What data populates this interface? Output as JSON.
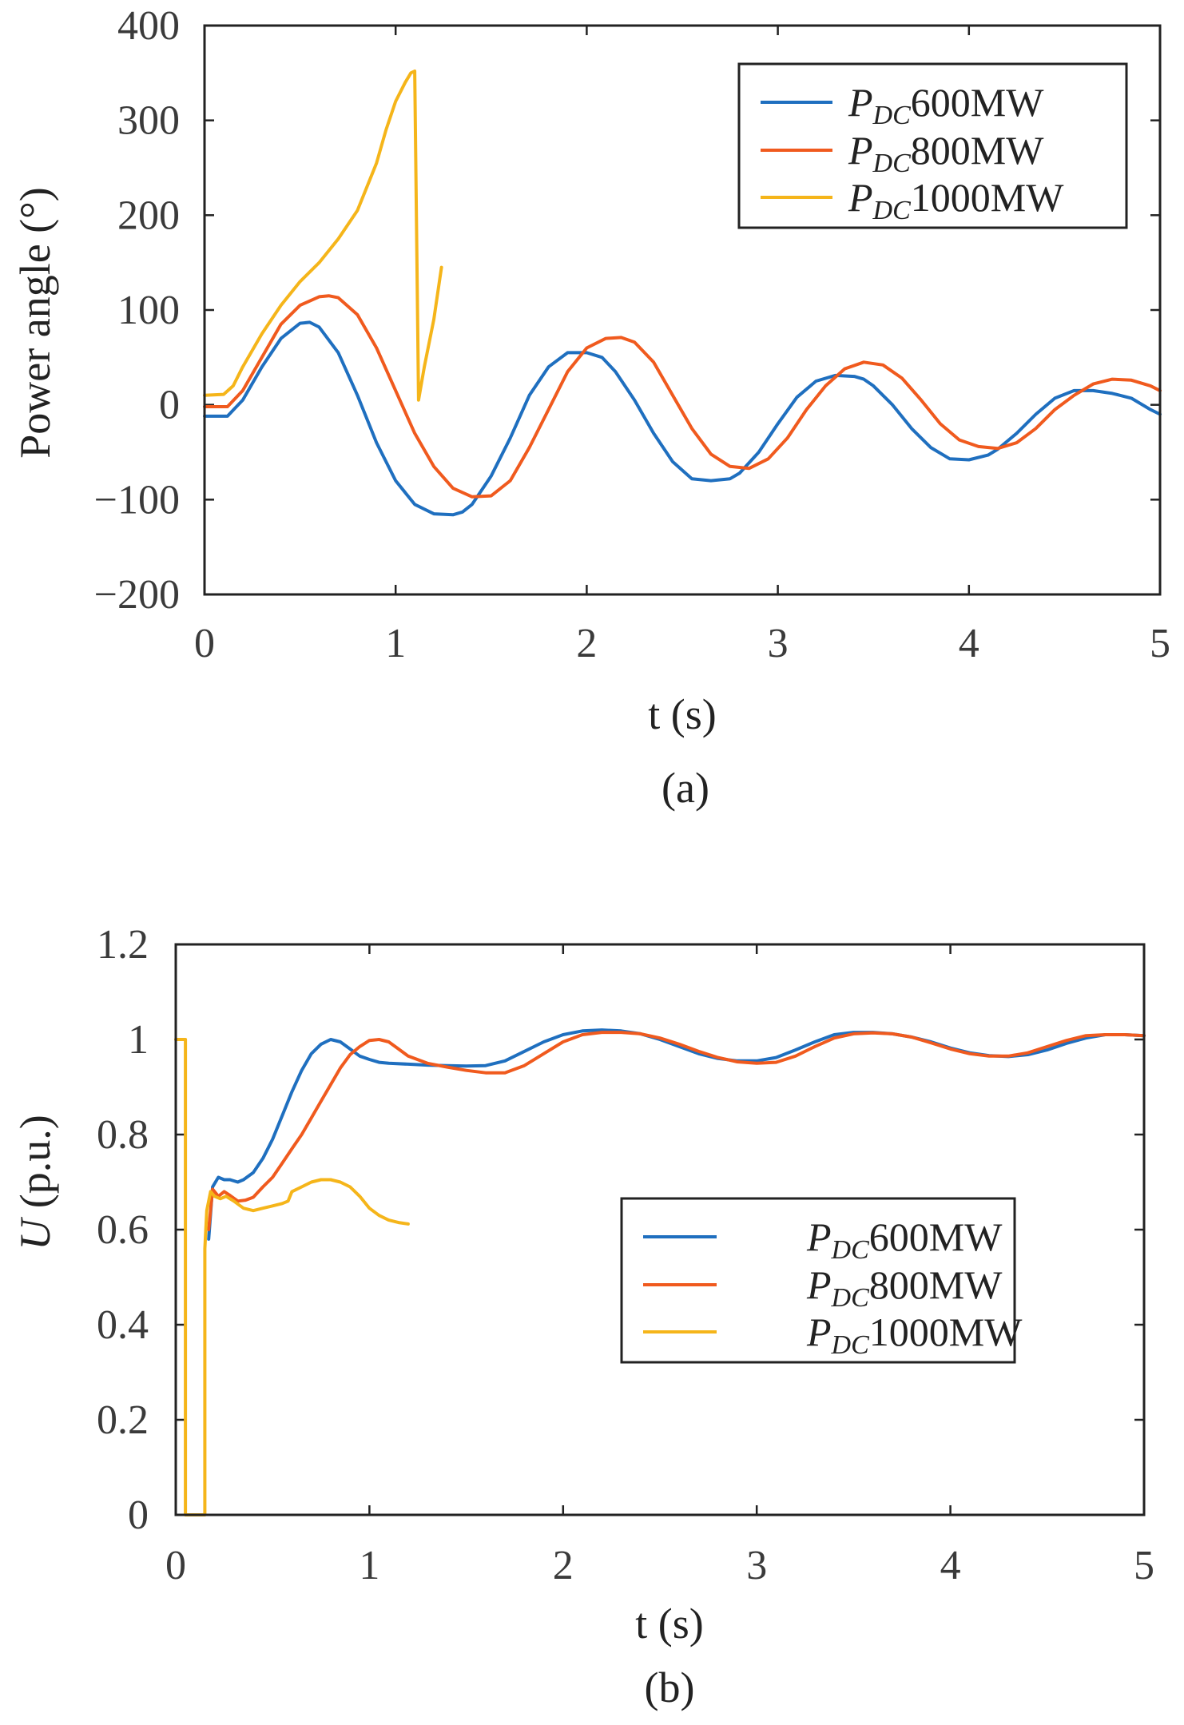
{
  "colors": {
    "p600": "#1f6fbf",
    "p800": "#f05a1e",
    "p1000": "#f5b51a",
    "axis": "#222222"
  },
  "chart_data": [
    {
      "id": "a",
      "type": "line",
      "caption": "(a)",
      "title": "",
      "xlabel": "t (s)",
      "ylabel": "Power angle (°)",
      "xlim": [
        0,
        5
      ],
      "ylim": [
        -200,
        400
      ],
      "xticks": [
        "0",
        "1",
        "2",
        "3",
        "4",
        "5"
      ],
      "yticks": [
        "−200",
        "−100",
        "0",
        "100",
        "200",
        "300",
        "400"
      ],
      "legend_position": "top-right",
      "series": [
        {
          "name": "PDC600MW",
          "sym": "P",
          "sub": "DC",
          "tail": "600MW",
          "color": "#1f6fbf",
          "x": [
            0,
            0.12,
            0.2,
            0.3,
            0.4,
            0.5,
            0.55,
            0.6,
            0.7,
            0.8,
            0.9,
            1.0,
            1.1,
            1.2,
            1.3,
            1.35,
            1.4,
            1.5,
            1.6,
            1.7,
            1.8,
            1.9,
            2.0,
            2.08,
            2.15,
            2.25,
            2.35,
            2.45,
            2.55,
            2.65,
            2.75,
            2.8,
            2.9,
            3.0,
            3.1,
            3.2,
            3.3,
            3.4,
            3.45,
            3.5,
            3.6,
            3.7,
            3.8,
            3.9,
            4.0,
            4.1,
            4.15,
            4.25,
            4.35,
            4.45,
            4.55,
            4.65,
            4.75,
            4.85,
            4.95,
            5.0
          ],
          "y": [
            -12,
            -12,
            5,
            40,
            70,
            86,
            87,
            82,
            55,
            10,
            -40,
            -80,
            -105,
            -115,
            -116,
            -113,
            -105,
            -75,
            -35,
            10,
            40,
            55,
            55,
            50,
            35,
            5,
            -30,
            -60,
            -78,
            -80,
            -78,
            -72,
            -50,
            -20,
            8,
            25,
            31,
            30,
            27,
            20,
            0,
            -25,
            -45,
            -57,
            -58,
            -53,
            -47,
            -30,
            -10,
            7,
            15,
            15,
            12,
            7,
            -5,
            -10
          ]
        },
        {
          "name": "PDC800MW",
          "sym": "P",
          "sub": "DC",
          "tail": "800MW",
          "color": "#f05a1e",
          "x": [
            0,
            0.12,
            0.2,
            0.3,
            0.4,
            0.5,
            0.6,
            0.65,
            0.7,
            0.8,
            0.9,
            1.0,
            1.1,
            1.2,
            1.3,
            1.4,
            1.5,
            1.6,
            1.7,
            1.8,
            1.9,
            2.0,
            2.1,
            2.18,
            2.25,
            2.35,
            2.45,
            2.55,
            2.65,
            2.75,
            2.85,
            2.95,
            3.05,
            3.15,
            3.25,
            3.35,
            3.45,
            3.55,
            3.65,
            3.75,
            3.85,
            3.95,
            4.05,
            4.15,
            4.25,
            4.35,
            4.45,
            4.55,
            4.65,
            4.75,
            4.85,
            4.95,
            5.0
          ],
          "y": [
            -2,
            -2,
            15,
            50,
            85,
            105,
            114,
            115,
            113,
            95,
            60,
            15,
            -30,
            -65,
            -88,
            -97,
            -96,
            -80,
            -45,
            -5,
            35,
            60,
            70,
            71,
            66,
            45,
            10,
            -25,
            -52,
            -65,
            -67,
            -57,
            -35,
            -5,
            20,
            38,
            45,
            42,
            28,
            5,
            -20,
            -37,
            -44,
            -46,
            -40,
            -25,
            -5,
            10,
            22,
            27,
            26,
            20,
            15
          ]
        },
        {
          "name": "PDC1000MW",
          "sym": "P",
          "sub": "DC",
          "tail": "1000MW",
          "color": "#f5b51a",
          "x": [
            0,
            0.1,
            0.15,
            0.2,
            0.3,
            0.4,
            0.5,
            0.6,
            0.7,
            0.8,
            0.9,
            0.95,
            1.0,
            1.05,
            1.08,
            1.1,
            1.12,
            1.15,
            1.2,
            1.24
          ],
          "y": [
            10,
            11,
            20,
            40,
            75,
            105,
            130,
            150,
            175,
            205,
            255,
            290,
            320,
            340,
            350,
            352,
            5,
            40,
            90,
            145
          ]
        }
      ]
    },
    {
      "id": "b",
      "type": "line",
      "caption": "(b)",
      "title": "",
      "xlabel": "t (s)",
      "ylabel": "U (p.u.)",
      "ylabel_sym": "U",
      "ylabel_tail": " (p.u.)",
      "xlim": [
        0,
        5
      ],
      "ylim": [
        0,
        1.2
      ],
      "xticks": [
        "0",
        "1",
        "2",
        "3",
        "4",
        "5"
      ],
      "yticks": [
        "0",
        "0.2",
        "0.4",
        "0.6",
        "0.8",
        "1",
        "1.2"
      ],
      "legend_position": "center-right",
      "series": [
        {
          "name": "PDC600MW",
          "sym": "P",
          "sub": "DC",
          "tail": "600MW",
          "color": "#1f6fbf",
          "x": [
            0.17,
            0.19,
            0.22,
            0.25,
            0.28,
            0.32,
            0.35,
            0.4,
            0.45,
            0.5,
            0.55,
            0.6,
            0.65,
            0.7,
            0.75,
            0.8,
            0.85,
            0.9,
            0.95,
            1.0,
            1.05,
            1.1,
            1.2,
            1.3,
            1.4,
            1.5,
            1.6,
            1.7,
            1.8,
            1.9,
            2.0,
            2.1,
            2.2,
            2.3,
            2.4,
            2.5,
            2.6,
            2.7,
            2.8,
            2.9,
            3.0,
            3.1,
            3.2,
            3.3,
            3.4,
            3.5,
            3.6,
            3.7,
            3.8,
            3.9,
            4.0,
            4.1,
            4.2,
            4.3,
            4.4,
            4.5,
            4.6,
            4.7,
            4.8,
            4.9,
            5.0
          ],
          "y": [
            0.58,
            0.69,
            0.71,
            0.705,
            0.705,
            0.7,
            0.705,
            0.72,
            0.75,
            0.79,
            0.84,
            0.89,
            0.935,
            0.97,
            0.99,
            1.0,
            0.995,
            0.98,
            0.965,
            0.958,
            0.952,
            0.95,
            0.948,
            0.946,
            0.945,
            0.944,
            0.945,
            0.955,
            0.975,
            0.995,
            1.01,
            1.018,
            1.02,
            1.018,
            1.012,
            1.0,
            0.985,
            0.97,
            0.96,
            0.955,
            0.955,
            0.962,
            0.978,
            0.995,
            1.01,
            1.015,
            1.015,
            1.012,
            1.005,
            0.995,
            0.982,
            0.972,
            0.966,
            0.964,
            0.968,
            0.978,
            0.992,
            1.003,
            1.01,
            1.01,
            1.008
          ]
        },
        {
          "name": "PDC800MW",
          "sym": "P",
          "sub": "DC",
          "tail": "800MW",
          "color": "#f05a1e",
          "x": [
            0.17,
            0.19,
            0.22,
            0.25,
            0.28,
            0.32,
            0.36,
            0.4,
            0.45,
            0.5,
            0.55,
            0.6,
            0.65,
            0.7,
            0.75,
            0.8,
            0.85,
            0.9,
            0.95,
            1.0,
            1.05,
            1.1,
            1.15,
            1.2,
            1.3,
            1.4,
            1.5,
            1.6,
            1.7,
            1.8,
            1.9,
            2.0,
            2.1,
            2.2,
            2.3,
            2.4,
            2.5,
            2.6,
            2.7,
            2.8,
            2.9,
            3.0,
            3.1,
            3.2,
            3.3,
            3.4,
            3.5,
            3.6,
            3.7,
            3.8,
            3.9,
            4.0,
            4.1,
            4.2,
            4.3,
            4.4,
            4.5,
            4.6,
            4.7,
            4.8,
            4.9,
            5.0
          ],
          "y": [
            0.6,
            0.685,
            0.67,
            0.68,
            0.672,
            0.66,
            0.662,
            0.668,
            0.69,
            0.71,
            0.74,
            0.77,
            0.8,
            0.835,
            0.87,
            0.905,
            0.94,
            0.968,
            0.985,
            0.998,
            1.0,
            0.995,
            0.98,
            0.965,
            0.95,
            0.942,
            0.935,
            0.93,
            0.93,
            0.945,
            0.97,
            0.995,
            1.01,
            1.015,
            1.015,
            1.012,
            1.003,
            0.99,
            0.975,
            0.962,
            0.953,
            0.95,
            0.952,
            0.965,
            0.985,
            1.003,
            1.012,
            1.014,
            1.012,
            1.005,
            0.993,
            0.98,
            0.97,
            0.965,
            0.965,
            0.972,
            0.985,
            0.998,
            1.008,
            1.01,
            1.01,
            1.008
          ]
        },
        {
          "name": "PDC1000MW",
          "sym": "P",
          "sub": "DC",
          "tail": "1000MW",
          "color": "#f5b51a",
          "x": [
            0.0,
            0.05,
            0.05,
            0.15,
            0.15,
            0.16,
            0.18,
            0.2,
            0.23,
            0.26,
            0.3,
            0.35,
            0.4,
            0.45,
            0.5,
            0.55,
            0.58,
            0.6,
            0.65,
            0.7,
            0.75,
            0.8,
            0.85,
            0.9,
            0.95,
            1.0,
            1.05,
            1.1,
            1.15,
            1.2
          ],
          "y": [
            1.0,
            1.0,
            0.0,
            0.0,
            0.56,
            0.64,
            0.68,
            0.67,
            0.665,
            0.67,
            0.66,
            0.645,
            0.64,
            0.645,
            0.65,
            0.655,
            0.66,
            0.68,
            0.69,
            0.7,
            0.705,
            0.705,
            0.7,
            0.69,
            0.67,
            0.645,
            0.63,
            0.62,
            0.615,
            0.612
          ]
        }
      ]
    }
  ]
}
